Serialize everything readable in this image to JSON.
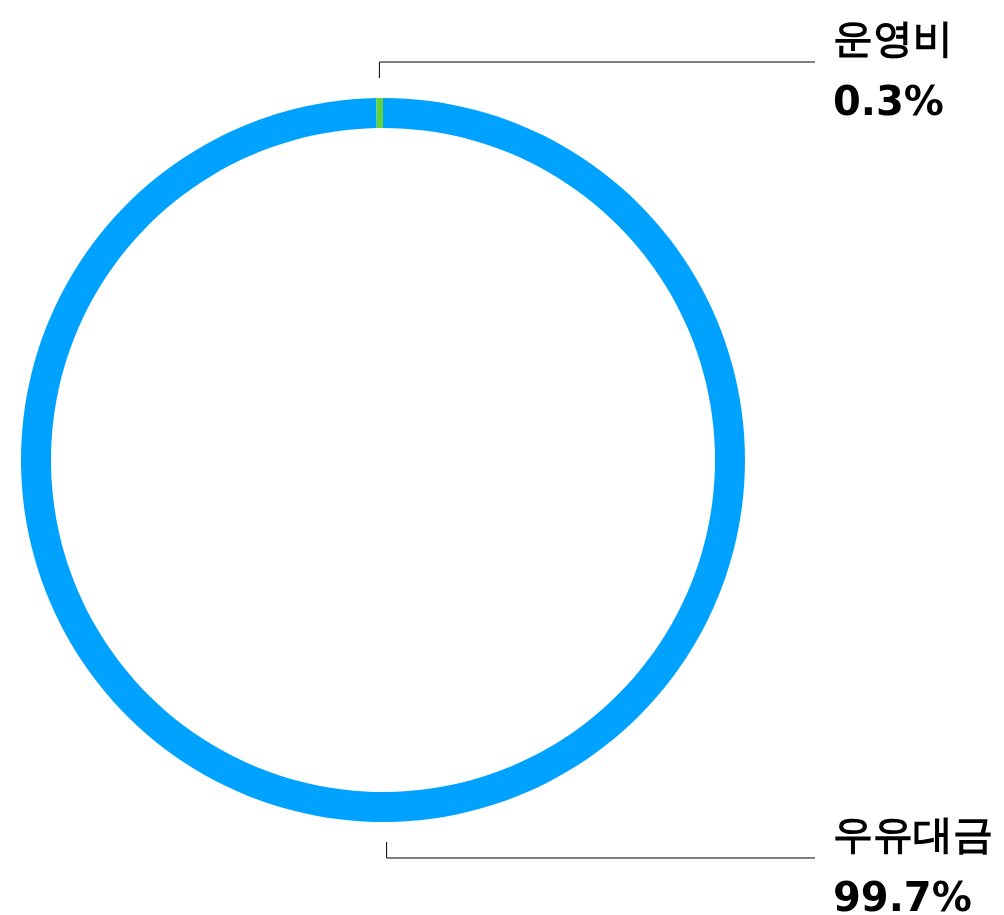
{
  "chart_data": {
    "type": "donut",
    "categories": [
      "우유대금",
      "운영비"
    ],
    "values": [
      99.7,
      0.3
    ],
    "colors": [
      "#00a2ff",
      "#64d13e"
    ],
    "value_labels": [
      "99.7%",
      "0.3%"
    ]
  }
}
